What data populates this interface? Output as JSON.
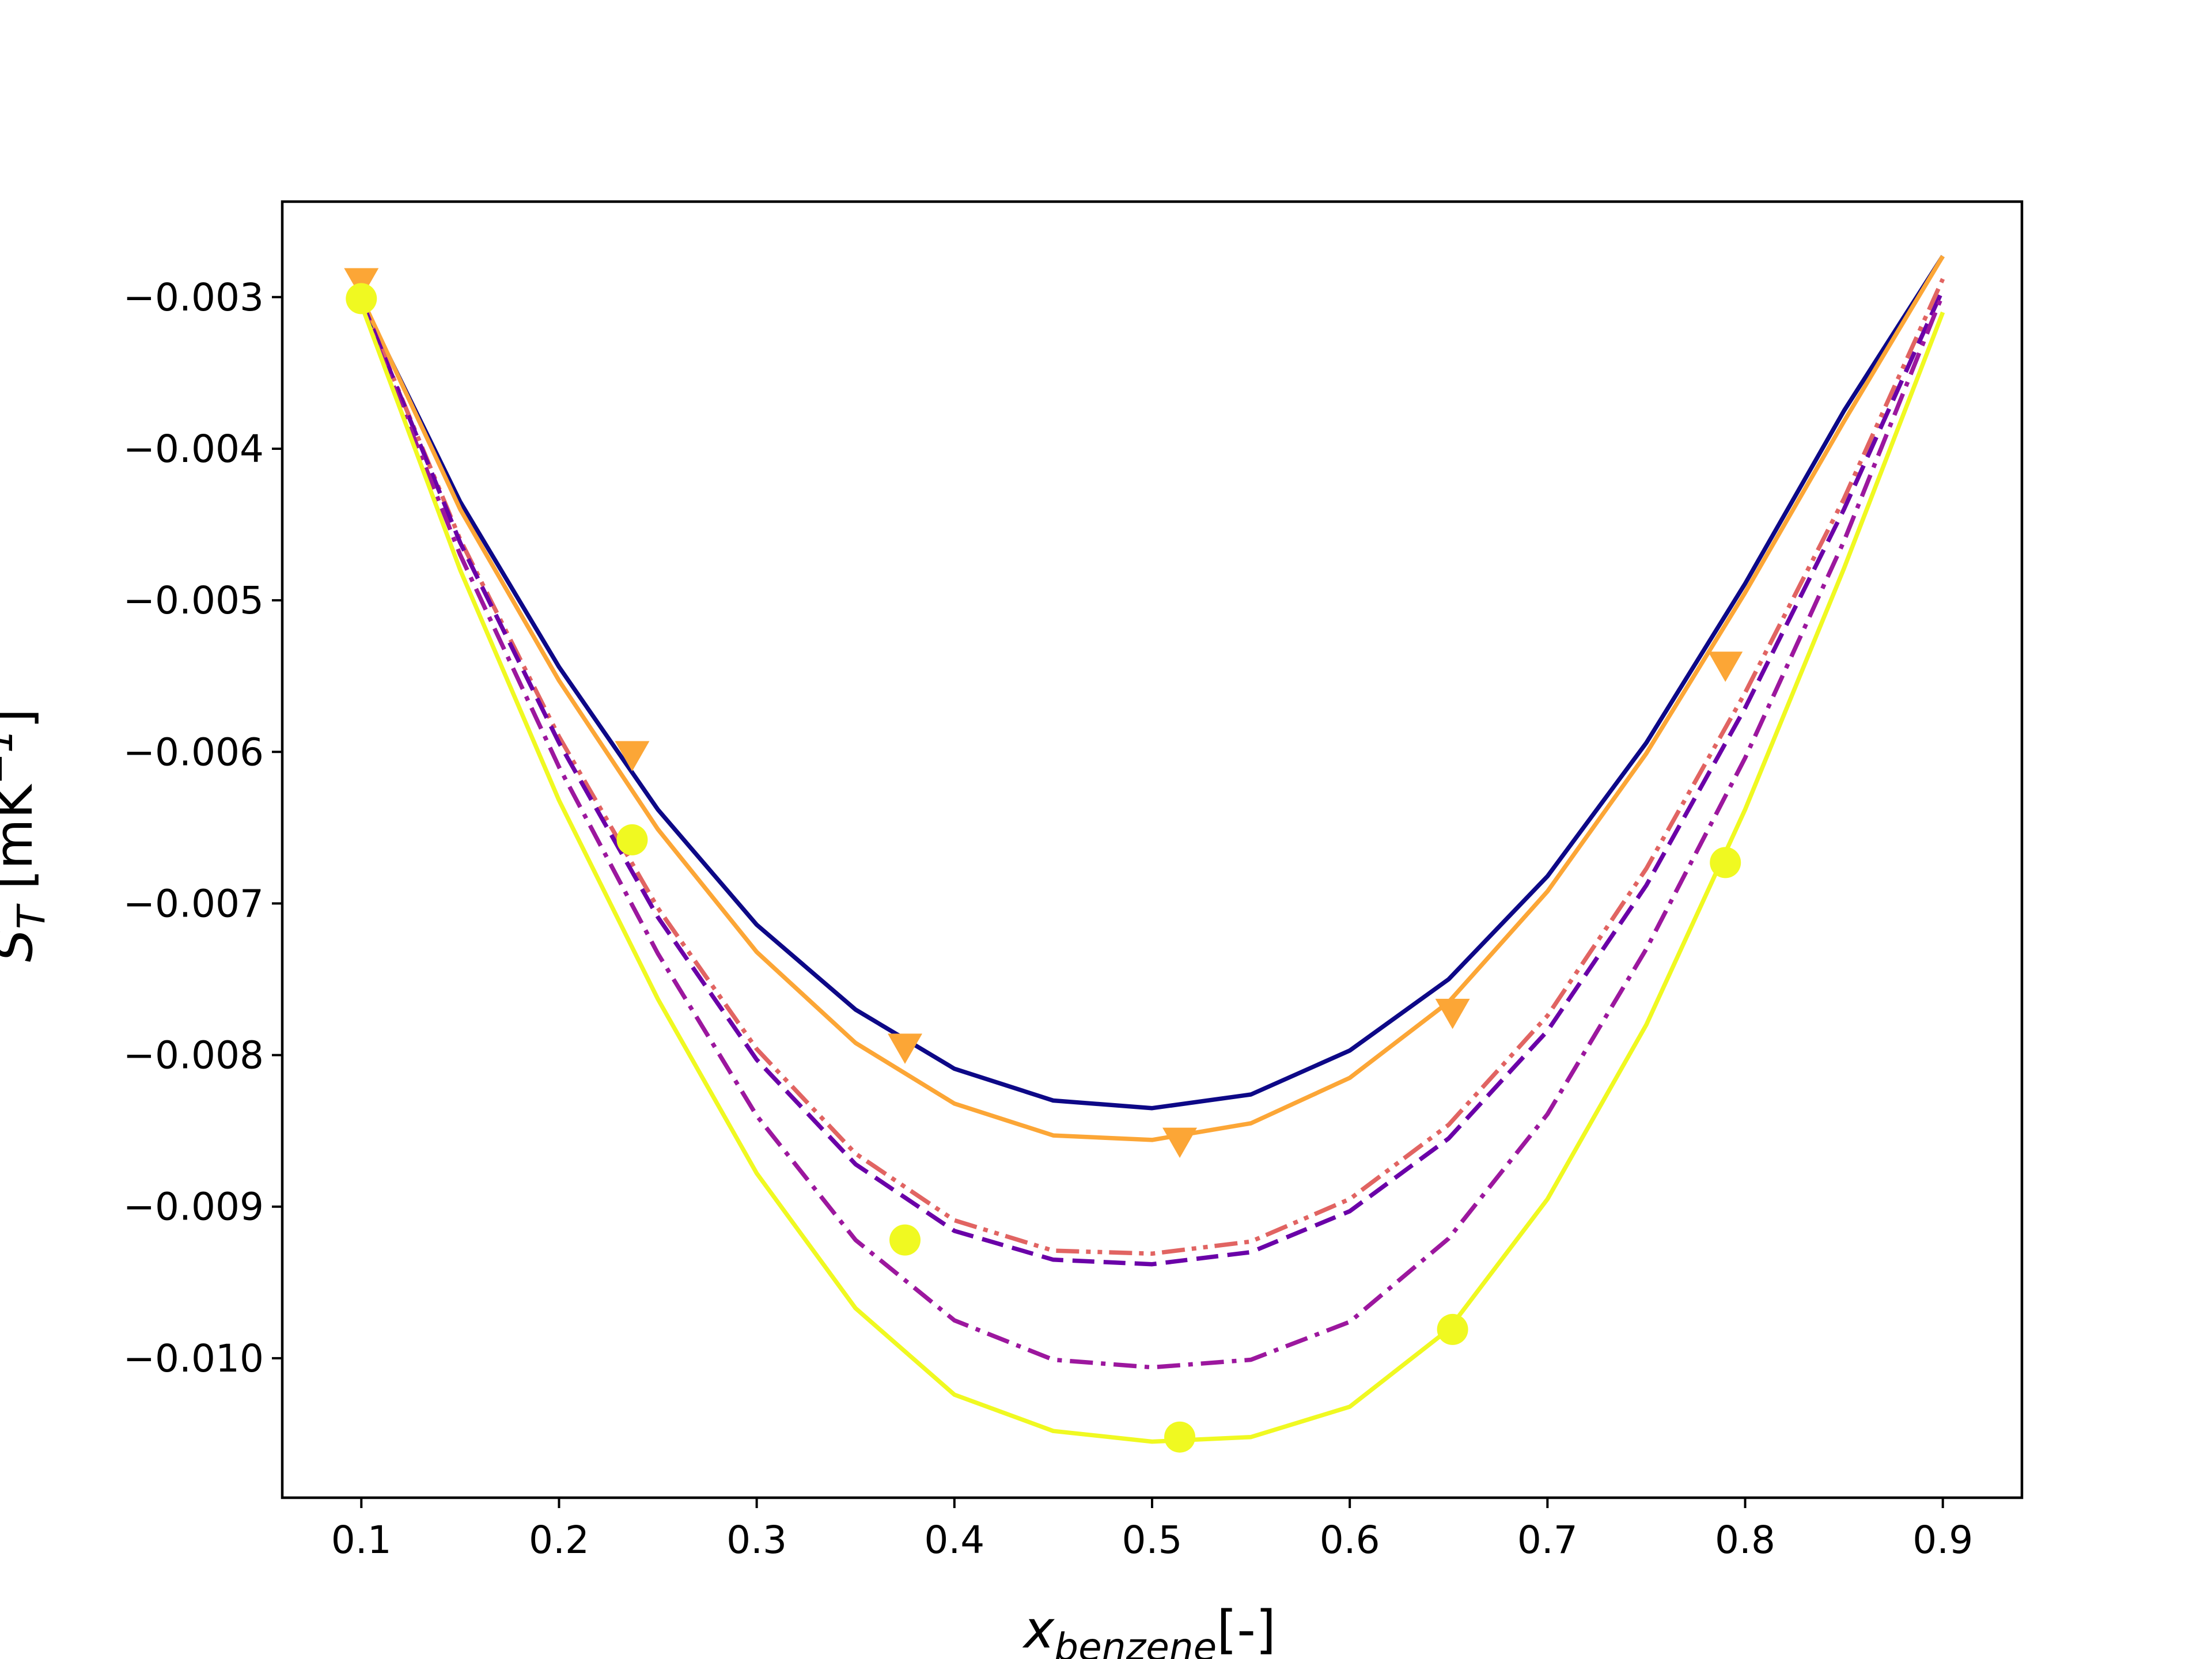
{
  "chart_data": {
    "type": "line",
    "title": "",
    "xlabel": {
      "main": "x",
      "sub": "benzene",
      "suffix": "[-]"
    },
    "ylabel": {
      "main": "S",
      "sub": "T",
      "suffix": " [mK",
      "sup": "−1",
      "close": "]"
    },
    "xlim": [
      0.06,
      0.94
    ],
    "ylim": [
      -0.01092,
      -0.00237
    ],
    "grid": false,
    "legend": "none",
    "x_ticks": [
      0.1,
      0.2,
      0.3,
      0.4,
      0.5,
      0.6,
      0.7,
      0.8,
      0.9
    ],
    "x_tick_labels": [
      "0.1",
      "0.2",
      "0.3",
      "0.4",
      "0.5",
      "0.6",
      "0.7",
      "0.8",
      "0.9"
    ],
    "y_ticks": [
      -0.003,
      -0.004,
      -0.005,
      -0.006,
      -0.007,
      -0.008,
      -0.009,
      -0.01
    ],
    "y_tick_labels": [
      "−0.003",
      "−0.004",
      "−0.005",
      "−0.006",
      "−0.007",
      "−0.008",
      "−0.009",
      "−0.010"
    ],
    "series": [
      {
        "color": "#0d0887",
        "dash": "solid",
        "marker": "none",
        "x": [
          0.1,
          0.15,
          0.2,
          0.25,
          0.3,
          0.35,
          0.4,
          0.45,
          0.5,
          0.55,
          0.6,
          0.65,
          0.7,
          0.75,
          0.8,
          0.85,
          0.9
        ],
        "y": [
          -0.00302,
          -0.00435,
          -0.00544,
          -0.00638,
          -0.00714,
          -0.0077,
          -0.00809,
          -0.0083,
          -0.00835,
          -0.00826,
          -0.00797,
          -0.0075,
          -0.00682,
          -0.00594,
          -0.00489,
          -0.00375,
          -0.00273
        ]
      },
      {
        "color": "#fca636",
        "dash": "solid",
        "marker": "triangle-down",
        "markers": {
          "x": [
            0.1,
            0.237,
            0.375,
            0.514,
            0.652,
            0.79
          ],
          "y": [
            -0.0029,
            -0.00602,
            -0.00795,
            -0.00857,
            -0.00772,
            -0.00543
          ]
        },
        "x": [
          0.1,
          0.15,
          0.2,
          0.25,
          0.3,
          0.35,
          0.4,
          0.45,
          0.5,
          0.55,
          0.6,
          0.65,
          0.7,
          0.75,
          0.8,
          0.85,
          0.9
        ],
        "y": [
          -0.003,
          -0.0044,
          -0.00553,
          -0.00651,
          -0.00732,
          -0.00792,
          -0.00832,
          -0.00853,
          -0.00856,
          -0.00845,
          -0.00815,
          -0.00765,
          -0.00692,
          -0.00601,
          -0.00495,
          -0.00382,
          -0.00273
        ]
      },
      {
        "color": "#e16462",
        "dash": "dashdotdot",
        "marker": "none",
        "x": [
          0.1,
          0.15,
          0.2,
          0.25,
          0.3,
          0.35,
          0.4,
          0.45,
          0.5,
          0.55,
          0.6,
          0.65,
          0.7,
          0.75,
          0.8,
          0.85,
          0.9
        ],
        "y": [
          -0.00302,
          -0.0046,
          -0.0059,
          -0.00703,
          -0.00796,
          -0.00865,
          -0.00909,
          -0.00929,
          -0.00931,
          -0.00923,
          -0.00895,
          -0.00846,
          -0.00774,
          -0.00677,
          -0.00561,
          -0.00433,
          -0.00288
        ]
      },
      {
        "color": "#6a00a8",
        "dash": "dashed",
        "marker": "none",
        "x": [
          0.1,
          0.15,
          0.2,
          0.25,
          0.3,
          0.35,
          0.4,
          0.45,
          0.5,
          0.55,
          0.6,
          0.65,
          0.7,
          0.75,
          0.8,
          0.85,
          0.9
        ],
        "y": [
          -0.00302,
          -0.00462,
          -0.00594,
          -0.00709,
          -0.00803,
          -0.00872,
          -0.00916,
          -0.00935,
          -0.00938,
          -0.0093,
          -0.00903,
          -0.00855,
          -0.00784,
          -0.00688,
          -0.00571,
          -0.0044,
          -0.00295
        ]
      },
      {
        "color": "#9c179e",
        "dash": "dashdot",
        "marker": "none",
        "x": [
          0.1,
          0.15,
          0.2,
          0.25,
          0.3,
          0.35,
          0.4,
          0.45,
          0.5,
          0.55,
          0.6,
          0.65,
          0.7,
          0.75,
          0.8,
          0.85,
          0.9
        ],
        "y": [
          -0.00305,
          -0.0047,
          -0.0061,
          -0.00733,
          -0.0084,
          -0.00922,
          -0.00975,
          -0.01001,
          -0.01006,
          -0.01001,
          -0.00976,
          -0.00921,
          -0.00839,
          -0.0073,
          -0.00604,
          -0.00461,
          -0.00298
        ]
      },
      {
        "color": "#f0f921",
        "dash": "solid",
        "marker": "circle",
        "markers": {
          "x": [
            0.1,
            0.237,
            0.375,
            0.514,
            0.652,
            0.79
          ],
          "y": [
            -0.00301,
            -0.00658,
            -0.00922,
            -0.01052,
            -0.00981,
            -0.00673
          ]
        },
        "x": [
          0.1,
          0.15,
          0.2,
          0.25,
          0.3,
          0.35,
          0.4,
          0.45,
          0.5,
          0.55,
          0.6,
          0.65,
          0.7,
          0.75,
          0.8,
          0.85,
          0.9
        ],
        "y": [
          -0.00305,
          -0.0048,
          -0.00632,
          -0.00763,
          -0.00878,
          -0.00967,
          -0.01024,
          -0.01048,
          -0.01055,
          -0.01052,
          -0.01032,
          -0.00981,
          -0.00895,
          -0.0078,
          -0.00638,
          -0.00479,
          -0.0031
        ]
      }
    ]
  }
}
